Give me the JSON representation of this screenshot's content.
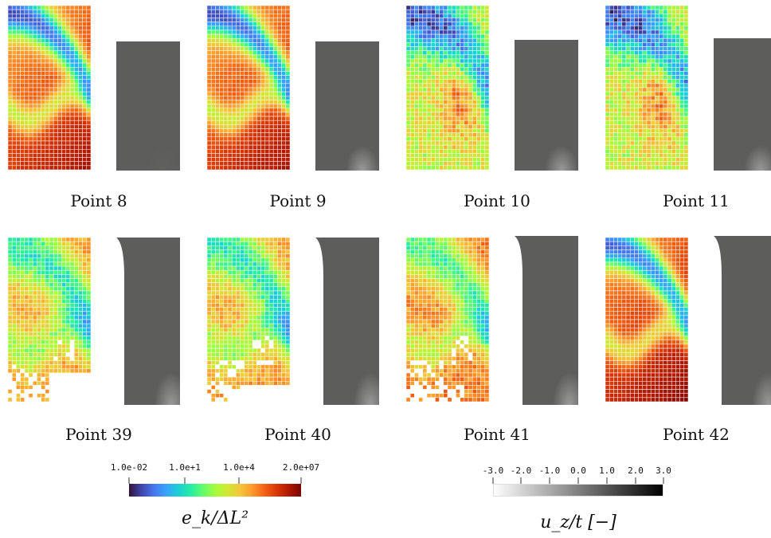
{
  "chart_data": {
    "type": "heatmap",
    "panels": [
      {
        "label": "Point 8",
        "pattern": "smooth-a",
        "seed": 8
      },
      {
        "label": "Point 9",
        "pattern": "smooth-b",
        "seed": 9
      },
      {
        "label": "Point 10",
        "pattern": "noisy-a",
        "seed": 10
      },
      {
        "label": "Point 11",
        "pattern": "noisy-b",
        "seed": 11
      },
      {
        "label": "Point 39",
        "pattern": "holes-a",
        "seed": 39
      },
      {
        "label": "Point 40",
        "pattern": "holes-b",
        "seed": 40
      },
      {
        "label": "Point 41",
        "pattern": "holes-c",
        "seed": 41
      },
      {
        "label": "Point 42",
        "pattern": "smooth-c",
        "seed": 42
      }
    ],
    "colorbar_error": {
      "title": "e_k/ΔL²",
      "ticks": [
        "1.0e-02",
        "1.0e+1",
        "1.0e+4",
        "2.0e+07"
      ],
      "colormap": "turbo"
    },
    "colorbar_displacement": {
      "title": "u_z/t [−]",
      "ticks": [
        "-3.0",
        "-2.0",
        "-1.0",
        "0.0",
        "1.0",
        "2.0",
        "3.0"
      ],
      "colormap": "gray"
    }
  }
}
